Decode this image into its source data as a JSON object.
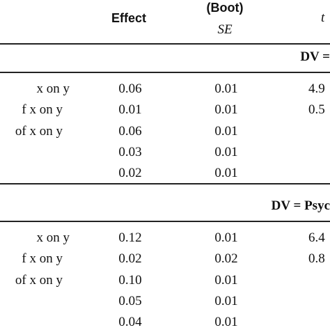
{
  "header": {
    "effect": "Effect",
    "boot": "(Boot)",
    "se": "SE",
    "t": "t"
  },
  "sections": [
    {
      "title": "DV =",
      "rows": [
        {
          "label": "x on y",
          "effect": "0.06",
          "se": "0.01",
          "t": "4.9"
        },
        {
          "label": "f x on y",
          "effect": "0.01",
          "se": "0.01",
          "t": "0.5"
        },
        {
          "label": "of x on y",
          "effect": "0.06",
          "se": "0.01"
        },
        {
          "effect": "0.03",
          "se": "0.01"
        },
        {
          "effect": "0.02",
          "se": "0.01"
        }
      ]
    },
    {
      "title": "DV = Psyc",
      "rows": [
        {
          "label": "x on y",
          "effect": "0.12",
          "se": "0.01",
          "t": "6.4"
        },
        {
          "label": "f x on y",
          "effect": "0.02",
          "se": "0.02",
          "t": "0.8"
        },
        {
          "label": "of x on y",
          "effect": "0.10",
          "se": "0.01"
        },
        {
          "effect": "0.05",
          "se": "0.01"
        },
        {
          "effect": "0.04",
          "se": "0.01"
        }
      ]
    }
  ]
}
